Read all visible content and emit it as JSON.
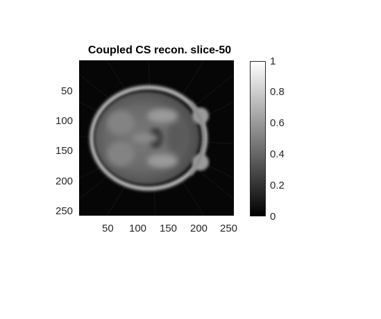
{
  "figure": {
    "title": "Coupled CS recon. slice-50",
    "y_ticks": [
      "50",
      "100",
      "150",
      "200",
      "250"
    ],
    "x_ticks": [
      "50",
      "100",
      "150",
      "200",
      "250"
    ],
    "colorbar_ticks": [
      "1",
      "0.8",
      "0.6",
      "0.4",
      "0.2",
      "0"
    ],
    "colormap": "gray",
    "image_subject": "axial brain MRI reconstruction"
  }
}
